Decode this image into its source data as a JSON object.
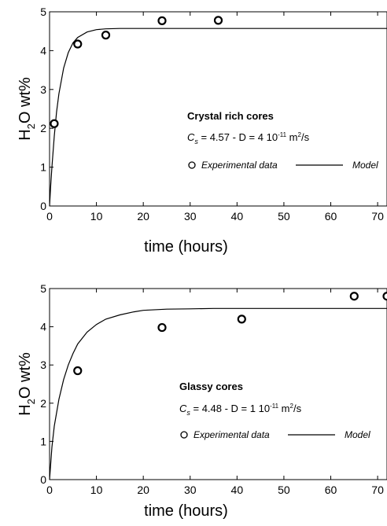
{
  "chart_data": [
    {
      "type": "scatter",
      "xlabel": "time (hours)",
      "ylabel_main": "H",
      "ylabel_sub": "2",
      "ylabel_rest": "O wt%",
      "xlim": [
        0,
        72
      ],
      "ylim": [
        0,
        5
      ],
      "xticks": [
        0,
        10,
        20,
        30,
        40,
        50,
        60,
        70
      ],
      "yticks": [
        0,
        1,
        2,
        3,
        4,
        5
      ],
      "grid": false,
      "annotation": {
        "title": "Crystal rich cores",
        "cs_symbol": "C",
        "cs_sub": "s",
        "eq_text": "= 4.57 - D = 4 10",
        "exp": "-11",
        "unit": " m",
        "unit_exp": "2",
        "unit_rest": "/s"
      },
      "legend": {
        "position": "right",
        "experimental": "Experimental data",
        "model": "Model"
      },
      "series": [
        {
          "name": "Experimental data",
          "kind": "markers",
          "x": [
            1,
            6,
            12,
            24,
            36
          ],
          "y": [
            2.12,
            4.17,
            4.4,
            4.77,
            4.78
          ]
        },
        {
          "name": "Model",
          "kind": "line",
          "cs": 4.57,
          "rate": 0.5,
          "x": [
            0,
            0.25,
            0.5,
            1,
            1.5,
            2,
            3,
            4,
            5,
            6,
            8,
            10,
            12,
            15,
            20,
            30,
            40,
            50,
            60,
            72
          ],
          "y": [
            0,
            0.54,
            1.0,
            1.8,
            2.42,
            2.89,
            3.55,
            3.95,
            4.2,
            4.34,
            4.48,
            4.54,
            4.56,
            4.57,
            4.57,
            4.57,
            4.57,
            4.57,
            4.57,
            4.57
          ]
        }
      ]
    },
    {
      "type": "scatter",
      "xlabel": "time (hours)",
      "ylabel_main": "H",
      "ylabel_sub": "2",
      "ylabel_rest": "O wt%",
      "xlim": [
        0,
        72
      ],
      "ylim": [
        0,
        5
      ],
      "xticks": [
        0,
        10,
        20,
        30,
        40,
        50,
        60,
        70
      ],
      "yticks": [
        0,
        1,
        2,
        3,
        4,
        5
      ],
      "grid": false,
      "annotation": {
        "title": "Glassy cores",
        "cs_symbol": "C",
        "cs_sub": "s",
        "eq_text": "= 4.48 - D = 1 10",
        "exp": "-11",
        "unit": " m",
        "unit_exp": "2",
        "unit_rest": "/s"
      },
      "legend": {
        "position": "right",
        "experimental": "Experimental data",
        "model": "Model"
      },
      "series": [
        {
          "name": "Experimental data",
          "kind": "markers",
          "x": [
            6,
            24,
            41,
            65,
            72
          ],
          "y": [
            2.85,
            3.98,
            4.2,
            4.8,
            4.8
          ]
        },
        {
          "name": "Model",
          "kind": "line",
          "cs": 4.48,
          "rate": 0.12,
          "x": [
            0,
            0.5,
            1,
            2,
            3,
            4,
            5,
            6,
            8,
            10,
            12,
            15,
            18,
            20,
            25,
            30,
            35,
            40,
            50,
            60,
            72
          ],
          "y": [
            0,
            0.85,
            1.4,
            2.1,
            2.62,
            3.0,
            3.3,
            3.55,
            3.86,
            4.06,
            4.2,
            4.31,
            4.39,
            4.43,
            4.46,
            4.47,
            4.48,
            4.48,
            4.48,
            4.48,
            4.48
          ]
        }
      ]
    }
  ]
}
